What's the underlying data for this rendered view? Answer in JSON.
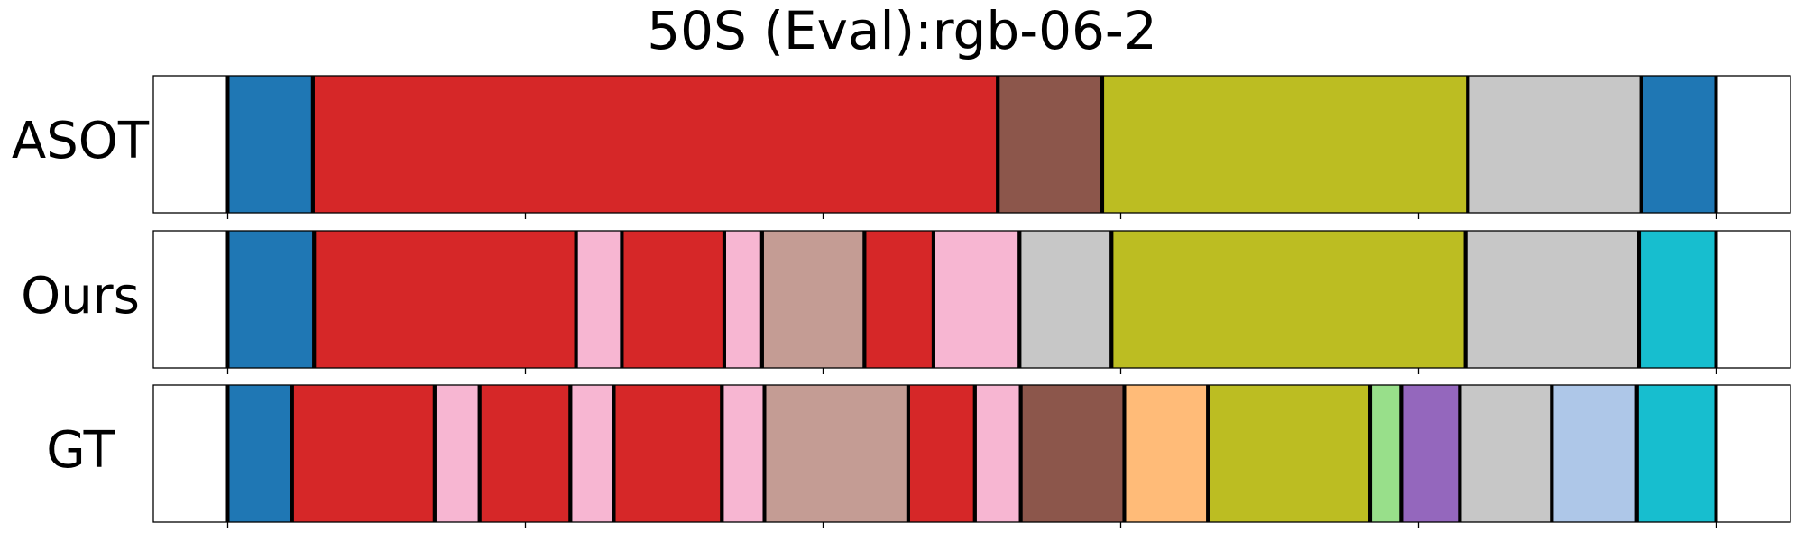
{
  "chart_data": {
    "type": "segments",
    "title": "50S (Eval):rgb-06-2",
    "xlim": [
      -25,
      525
    ],
    "xticks": [
      0,
      100,
      200,
      300,
      400,
      500
    ],
    "rows": [
      {
        "label": "ASOT",
        "segments": [
          {
            "start": 0,
            "end": 28.6,
            "color": "#1f77b4"
          },
          {
            "start": 28.6,
            "end": 258.7,
            "color": "#d62728"
          },
          {
            "start": 258.7,
            "end": 293.8,
            "color": "#8c564b"
          },
          {
            "start": 293.8,
            "end": 416.6,
            "color": "#bcbd22"
          },
          {
            "start": 416.6,
            "end": 474.9,
            "color": "#c7c7c7"
          },
          {
            "start": 474.9,
            "end": 500,
            "color": "#1f77b4"
          }
        ]
      },
      {
        "label": "Ours",
        "segments": [
          {
            "start": 0,
            "end": 29,
            "color": "#1f77b4"
          },
          {
            "start": 29,
            "end": 117,
            "color": "#d62728"
          },
          {
            "start": 117,
            "end": 132.4,
            "color": "#f7b6d2"
          },
          {
            "start": 132.4,
            "end": 166.8,
            "color": "#d62728"
          },
          {
            "start": 166.8,
            "end": 179.5,
            "color": "#f7b6d2"
          },
          {
            "start": 179.5,
            "end": 213.9,
            "color": "#c49c94"
          },
          {
            "start": 213.9,
            "end": 237.1,
            "color": "#d62728"
          },
          {
            "start": 237.1,
            "end": 266,
            "color": "#f7b6d2"
          },
          {
            "start": 266,
            "end": 296.9,
            "color": "#c7c7c7"
          },
          {
            "start": 296.9,
            "end": 415.8,
            "color": "#bcbd22"
          },
          {
            "start": 415.8,
            "end": 474.1,
            "color": "#c7c7c7"
          },
          {
            "start": 474.1,
            "end": 500,
            "color": "#17becf"
          }
        ]
      },
      {
        "label": "GT",
        "segments": [
          {
            "start": 0,
            "end": 21.6,
            "color": "#1f77b4"
          },
          {
            "start": 21.6,
            "end": 69.5,
            "color": "#d62728"
          },
          {
            "start": 69.5,
            "end": 84.6,
            "color": "#f7b6d2"
          },
          {
            "start": 84.6,
            "end": 115.1,
            "color": "#d62728"
          },
          {
            "start": 115.1,
            "end": 129.7,
            "color": "#f7b6d2"
          },
          {
            "start": 129.7,
            "end": 166,
            "color": "#d62728"
          },
          {
            "start": 166,
            "end": 180.3,
            "color": "#f7b6d2"
          },
          {
            "start": 180.3,
            "end": 228.6,
            "color": "#c49c94"
          },
          {
            "start": 228.6,
            "end": 251,
            "color": "#d62728"
          },
          {
            "start": 251,
            "end": 266.4,
            "color": "#f7b6d2"
          },
          {
            "start": 266.4,
            "end": 301.2,
            "color": "#8c564b"
          },
          {
            "start": 301.2,
            "end": 329.3,
            "color": "#ffbb78"
          },
          {
            "start": 329.3,
            "end": 383.8,
            "color": "#bcbd22"
          },
          {
            "start": 383.8,
            "end": 394.2,
            "color": "#98df8a"
          },
          {
            "start": 394.2,
            "end": 413.9,
            "color": "#9467bd"
          },
          {
            "start": 413.9,
            "end": 444.8,
            "color": "#c7c7c7"
          },
          {
            "start": 444.8,
            "end": 473.4,
            "color": "#aec7e8"
          },
          {
            "start": 473.4,
            "end": 500,
            "color": "#17becf"
          }
        ]
      }
    ]
  }
}
